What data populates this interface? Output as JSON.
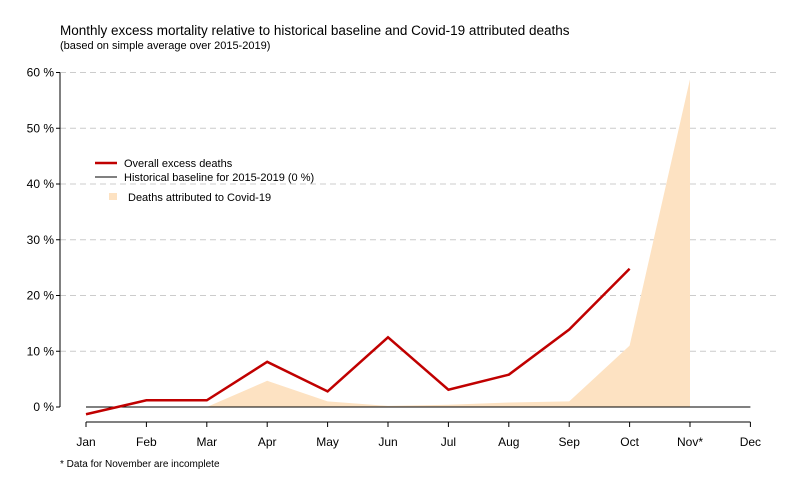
{
  "chart_data": {
    "type": "line",
    "title": "Monthly excess mortality relative to historical baseline and Covid-19 attributed deaths",
    "subtitle": "(based on simple average over 2015-2019)",
    "footnote": "* Data for November are incomplete",
    "categories": [
      "Jan",
      "Feb",
      "Mar",
      "Apr",
      "May",
      "Jun",
      "Jul",
      "Aug",
      "Sep",
      "Oct",
      "Nov*",
      "Dec"
    ],
    "ylim": [
      0,
      60
    ],
    "yticks": [
      0,
      10,
      20,
      30,
      40,
      50,
      60
    ],
    "ytick_labels": [
      "0 %",
      "10 %",
      "20 %",
      "30 %",
      "40 %",
      "50 %",
      "60 %"
    ],
    "grid": true,
    "legend_position": "upper-left",
    "series": [
      {
        "name": "Overall excess deaths",
        "kind": "line",
        "color": "#c00000",
        "values": [
          -1.3,
          1.2,
          1.2,
          8.1,
          2.8,
          12.5,
          3.1,
          5.8,
          13.9,
          24.8,
          null,
          null
        ]
      },
      {
        "name": "Historical baseline for 2015-2019 (0 %)",
        "kind": "baseline",
        "color": "#000000",
        "values": [
          0,
          0,
          0,
          0,
          0,
          0,
          0,
          0,
          0,
          0,
          0,
          0
        ]
      },
      {
        "name": "Deaths attributed to Covid-19",
        "kind": "area",
        "color": "#fde2c2",
        "values": [
          null,
          null,
          0,
          4.7,
          1.0,
          0.2,
          0.4,
          0.8,
          1.0,
          11.0,
          58.8,
          null
        ]
      }
    ]
  }
}
